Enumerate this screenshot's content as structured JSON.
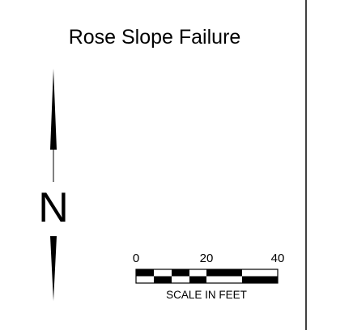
{
  "title": "Rose Slope Failure",
  "north_arrow": {
    "label": "N"
  },
  "scale_bar": {
    "labels": [
      "0",
      "20",
      "40"
    ],
    "caption": "SCALE IN FEET"
  }
}
